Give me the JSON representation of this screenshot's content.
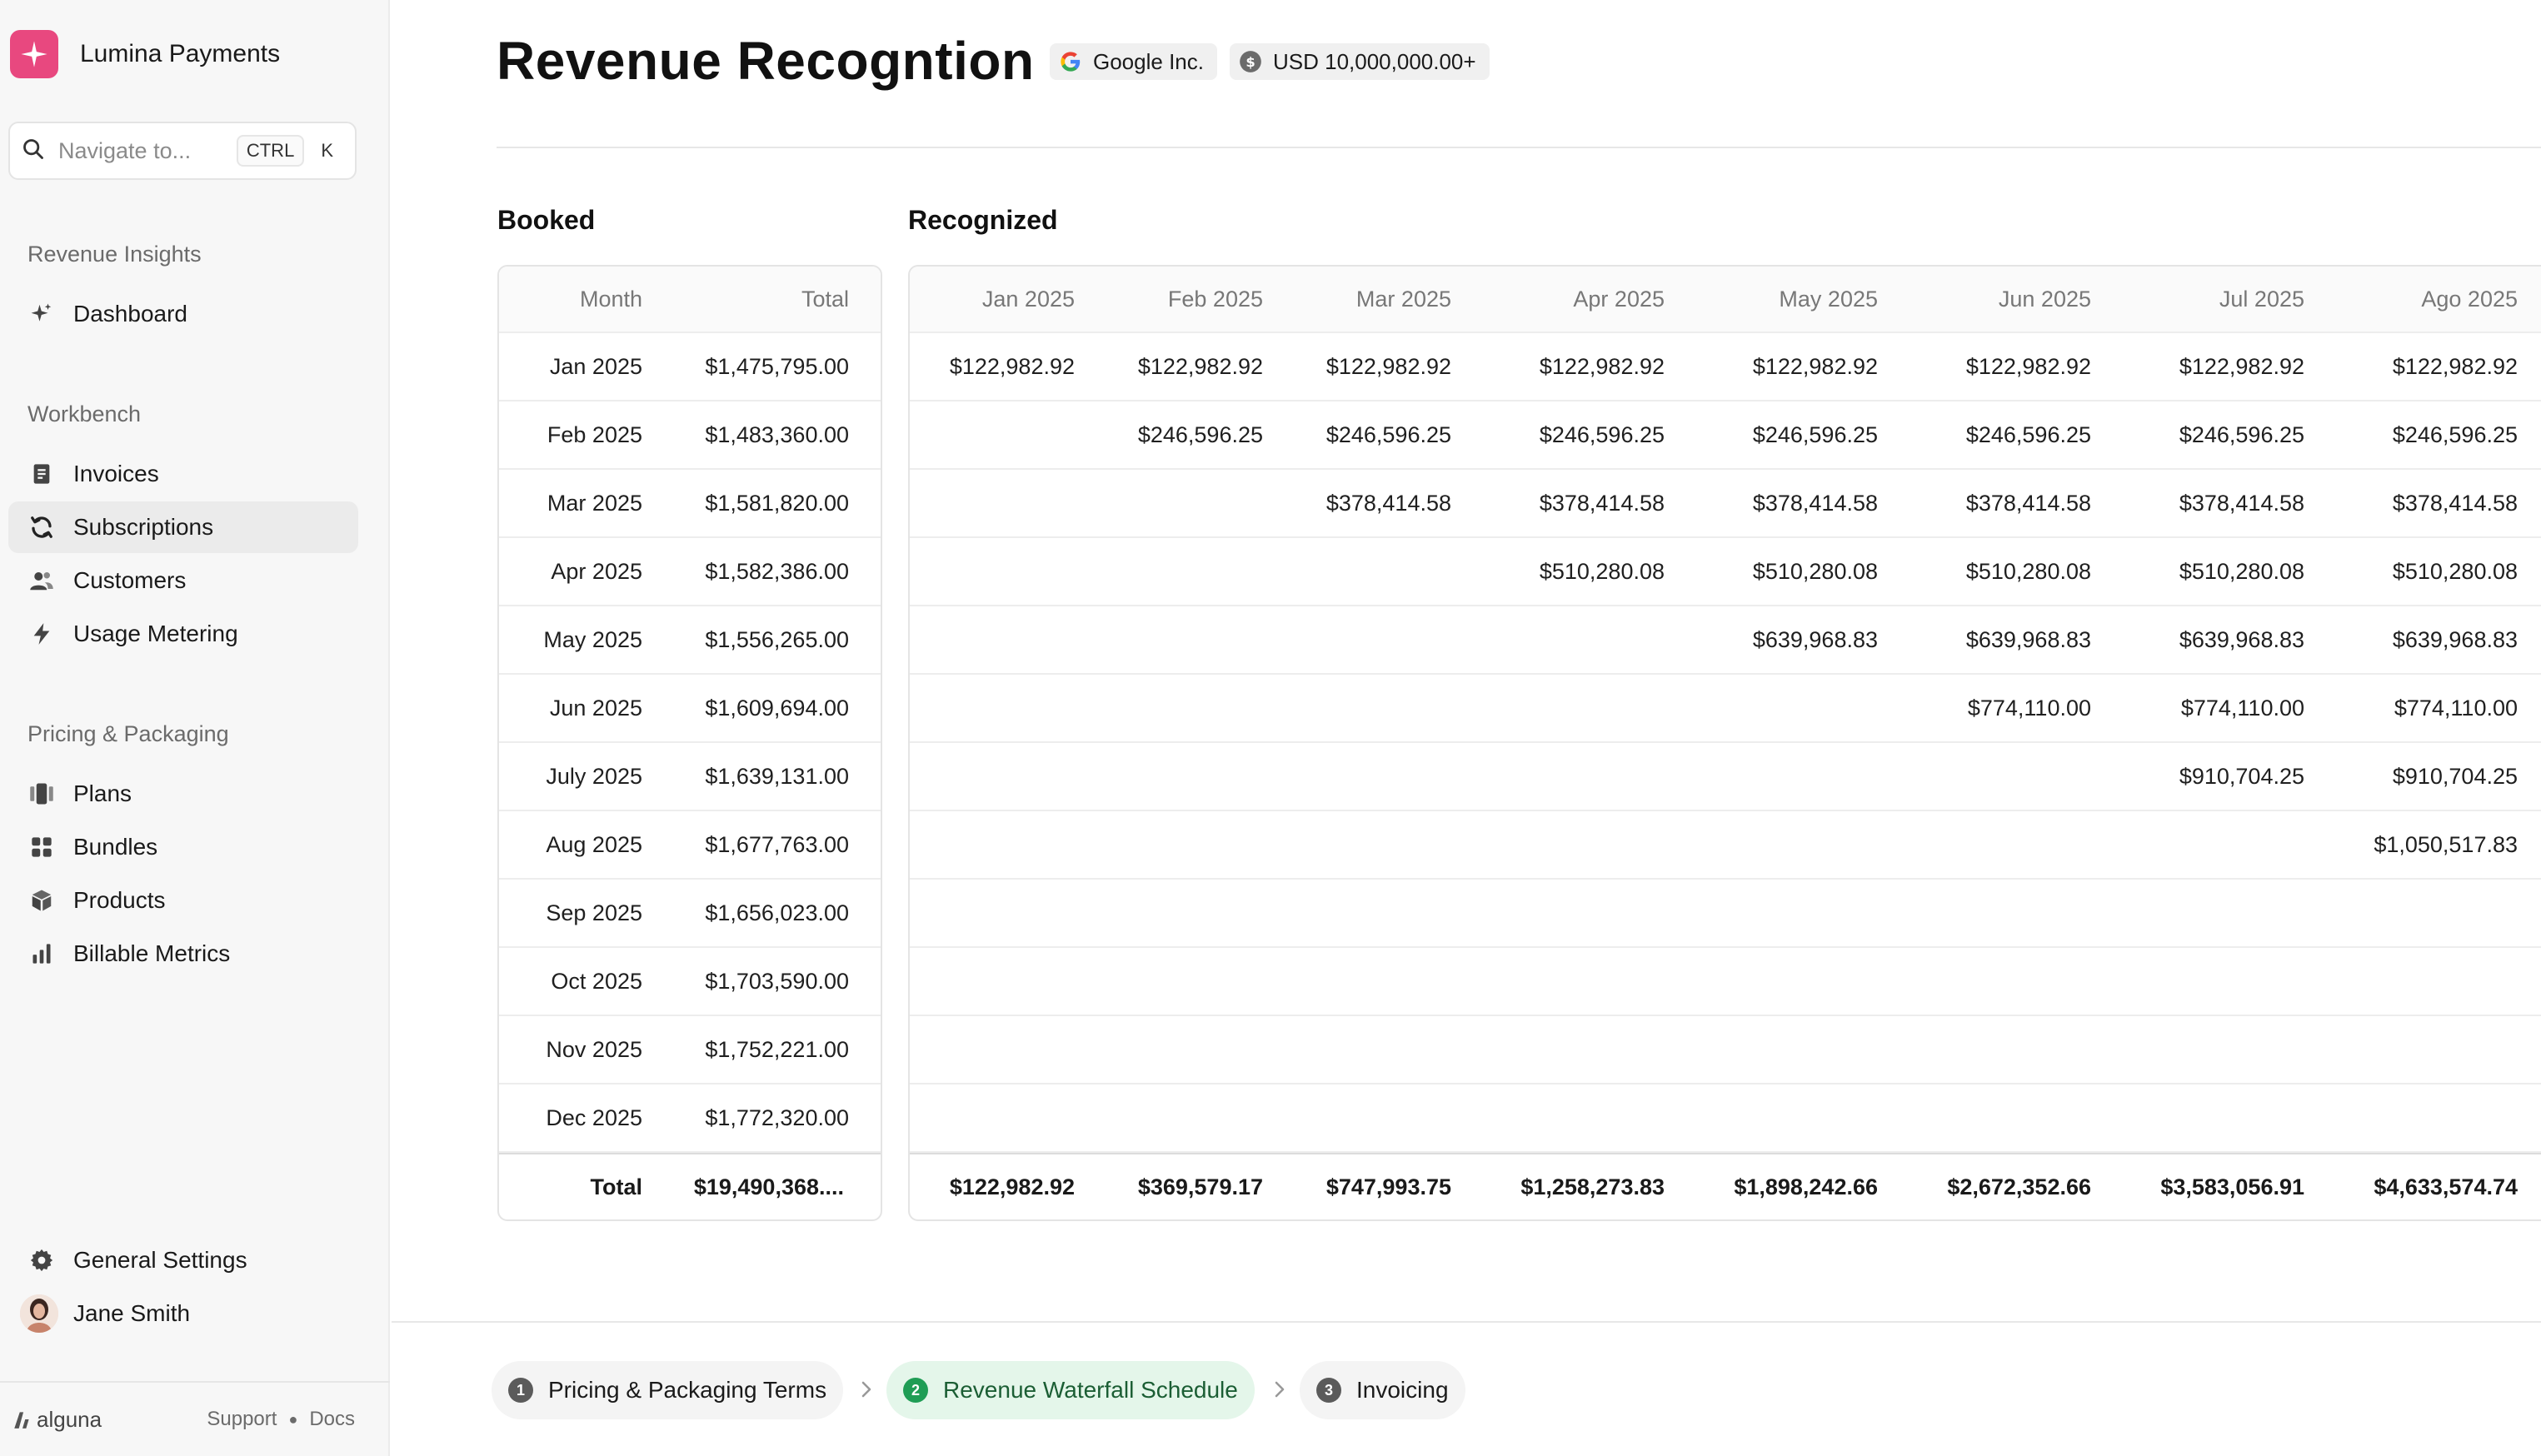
{
  "app": {
    "name": "Lumina Payments"
  },
  "search": {
    "placeholder": "Navigate to...",
    "shortcut_modifier": "CTRL",
    "shortcut_key": "K"
  },
  "sidebar": {
    "sections": [
      {
        "label": "Revenue Insights",
        "items": [
          {
            "label": "Dashboard",
            "icon": "sparkle-icon"
          }
        ]
      },
      {
        "label": "Workbench",
        "items": [
          {
            "label": "Invoices",
            "icon": "invoice-icon"
          },
          {
            "label": "Subscriptions",
            "icon": "refresh-icon",
            "active": true
          },
          {
            "label": "Customers",
            "icon": "users-icon"
          },
          {
            "label": "Usage Metering",
            "icon": "bolt-icon"
          }
        ]
      },
      {
        "label": "Pricing & Packaging",
        "items": [
          {
            "label": "Plans",
            "icon": "plans-icon"
          },
          {
            "label": "Bundles",
            "icon": "grid-icon"
          },
          {
            "label": "Products",
            "icon": "box-icon"
          },
          {
            "label": "Billable Metrics",
            "icon": "bar-chart-icon"
          }
        ]
      }
    ],
    "settings_label": "General Settings",
    "user_name": "Jane Smith",
    "footer": {
      "logo_text": "alguna",
      "support": "Support",
      "docs": "Docs"
    }
  },
  "page": {
    "title": "Revenue Recogntion",
    "customer_badge": "Google Inc.",
    "amount_badge": "USD 10,000,000.00+"
  },
  "booked": {
    "title": "Booked",
    "headers": [
      "Month",
      "Total"
    ],
    "rows": [
      [
        "Jan 2025",
        "$1,475,795.00"
      ],
      [
        "Feb 2025",
        "$1,483,360.00"
      ],
      [
        "Mar 2025",
        "$1,581,820.00"
      ],
      [
        "Apr 2025",
        "$1,582,386.00"
      ],
      [
        "May 2025",
        "$1,556,265.00"
      ],
      [
        "Jun 2025",
        "$1,609,694.00"
      ],
      [
        "July 2025",
        "$1,639,131.00"
      ],
      [
        "Aug 2025",
        "$1,677,763.00"
      ],
      [
        "Sep 2025",
        "$1,656,023.00"
      ],
      [
        "Oct 2025",
        "$1,703,590.00"
      ],
      [
        "Nov 2025",
        "$1,752,221.00"
      ],
      [
        "Dec 2025",
        "$1,772,320.00"
      ]
    ],
    "total_label": "Total",
    "total_value": "$19,490,368...."
  },
  "recognized": {
    "title": "Recognized",
    "headers": [
      "Jan 2025",
      "Feb 2025",
      "Mar 2025",
      "Apr 2025",
      "May 2025",
      "Jun 2025",
      "Jul 2025",
      "Ago 2025"
    ],
    "rows": [
      [
        "$122,982.92",
        "$122,982.92",
        "$122,982.92",
        "$122,982.92",
        "$122,982.92",
        "$122,982.92",
        "$122,982.92",
        "$122,982.92"
      ],
      [
        "",
        "$246,596.25",
        "$246,596.25",
        "$246,596.25",
        "$246,596.25",
        "$246,596.25",
        "$246,596.25",
        "$246,596.25"
      ],
      [
        "",
        "",
        "$378,414.58",
        "$378,414.58",
        "$378,414.58",
        "$378,414.58",
        "$378,414.58",
        "$378,414.58"
      ],
      [
        "",
        "",
        "",
        "$510,280.08",
        "$510,280.08",
        "$510,280.08",
        "$510,280.08",
        "$510,280.08"
      ],
      [
        "",
        "",
        "",
        "",
        "$639,968.83",
        "$639,968.83",
        "$639,968.83",
        "$639,968.83"
      ],
      [
        "",
        "",
        "",
        "",
        "",
        "$774,110.00",
        "$774,110.00",
        "$774,110.00"
      ],
      [
        "",
        "",
        "",
        "",
        "",
        "",
        "$910,704.25",
        "$910,704.25"
      ],
      [
        "",
        "",
        "",
        "",
        "",
        "",
        "",
        "$1,050,517.83"
      ],
      [
        "",
        "",
        "",
        "",
        "",
        "",
        "",
        ""
      ],
      [
        "",
        "",
        "",
        "",
        "",
        "",
        "",
        ""
      ],
      [
        "",
        "",
        "",
        "",
        "",
        "",
        "",
        ""
      ],
      [
        "",
        "",
        "",
        "",
        "",
        "",
        "",
        ""
      ]
    ],
    "totals": [
      "$122,982.92",
      "$369,579.17",
      "$747,993.75",
      "$1,258,273.83",
      "$1,898,242.66",
      "$2,672,352.66",
      "$3,583,056.91",
      "$4,633,574.74"
    ]
  },
  "steps": [
    {
      "num": "1",
      "label": "Pricing & Packaging Terms"
    },
    {
      "num": "2",
      "label": "Revenue Waterfall Schedule",
      "active": true
    },
    {
      "num": "3",
      "label": "Invoicing"
    }
  ],
  "colors": {
    "brand": "#e8487f",
    "step_active_bg": "#e4f6ea",
    "step_active_fg": "#1f9d55"
  }
}
